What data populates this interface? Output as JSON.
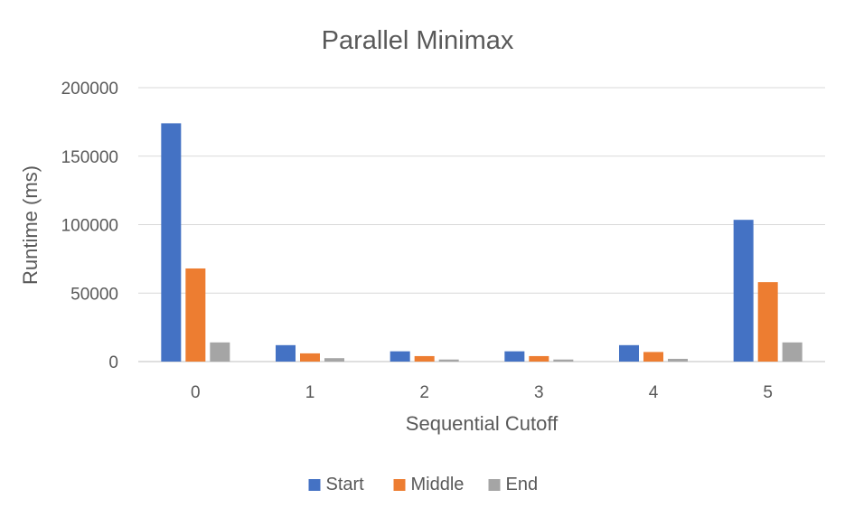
{
  "chart_data": {
    "type": "bar",
    "title": "Parallel Minimax",
    "xlabel": "Sequential Cutoff",
    "ylabel": "Runtime (ms)",
    "categories": [
      "0",
      "1",
      "2",
      "3",
      "4",
      "5"
    ],
    "series": [
      {
        "name": "Start",
        "color": "#4472C4",
        "values": [
          174000,
          12000,
          7500,
          7500,
          12000,
          103500
        ]
      },
      {
        "name": "Middle",
        "color": "#ED7D31",
        "values": [
          68000,
          6000,
          4000,
          4000,
          7000,
          58000
        ]
      },
      {
        "name": "End",
        "color": "#A5A5A5",
        "values": [
          14000,
          2500,
          1500,
          1500,
          2000,
          14000
        ]
      }
    ],
    "ylim": [
      0,
      200000
    ],
    "yticks": [
      "0",
      "50000",
      "100000",
      "150000",
      "200000"
    ],
    "grid": true,
    "legend_position": "bottom"
  }
}
